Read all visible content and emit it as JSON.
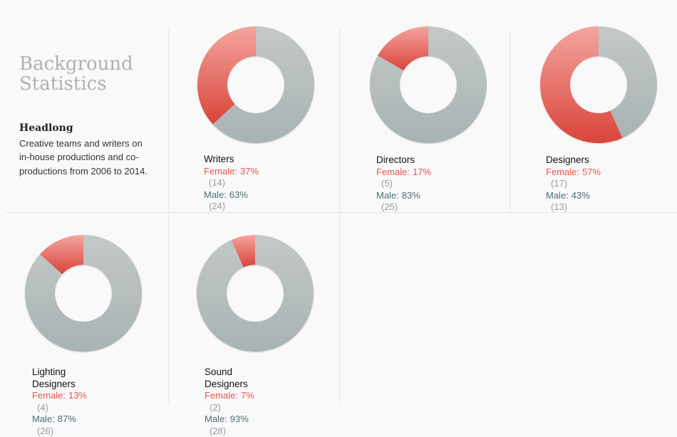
{
  "intro": {
    "title": "Background\nStatistics",
    "organization": "Headlong",
    "description": "Creative teams and writers on in-house productions and co-productions from 2006 to 2014."
  },
  "colors": {
    "female_light": "#f4a59f",
    "female_dark": "#d9443a",
    "male_light": "#c4c8c8",
    "male_dark": "#a8b3b3",
    "female_text": "#e8554e",
    "male_text": "#4f6e72",
    "count_text": "#9a9a9a"
  },
  "labels": {
    "female": "Female:",
    "male": "Male:"
  },
  "chart_data": [
    {
      "type": "pie",
      "title": "Writers",
      "female": {
        "pct": "37%",
        "count": "(14)",
        "value": 14
      },
      "male": {
        "pct": "63%",
        "count": "(24)",
        "value": 24
      }
    },
    {
      "type": "pie",
      "title": "Directors",
      "female": {
        "pct": "17%",
        "count": "(5)",
        "value": 5
      },
      "male": {
        "pct": "83%",
        "count": "(25)",
        "value": 25
      }
    },
    {
      "type": "pie",
      "title": "Designers",
      "female": {
        "pct": "57%",
        "count": "(17)",
        "value": 17
      },
      "male": {
        "pct": "43%",
        "count": "(13)",
        "value": 13
      }
    },
    {
      "type": "pie",
      "title": "Lighting Designers",
      "female": {
        "pct": "13%",
        "count": "(4)",
        "value": 4
      },
      "male": {
        "pct": "87%",
        "count": "(26)",
        "value": 26
      }
    },
    {
      "type": "pie",
      "title": "Sound Designers",
      "female": {
        "pct": "7%",
        "count": "(2)",
        "value": 2
      },
      "male": {
        "pct": "93%",
        "count": "(28)",
        "value": 28
      }
    }
  ]
}
